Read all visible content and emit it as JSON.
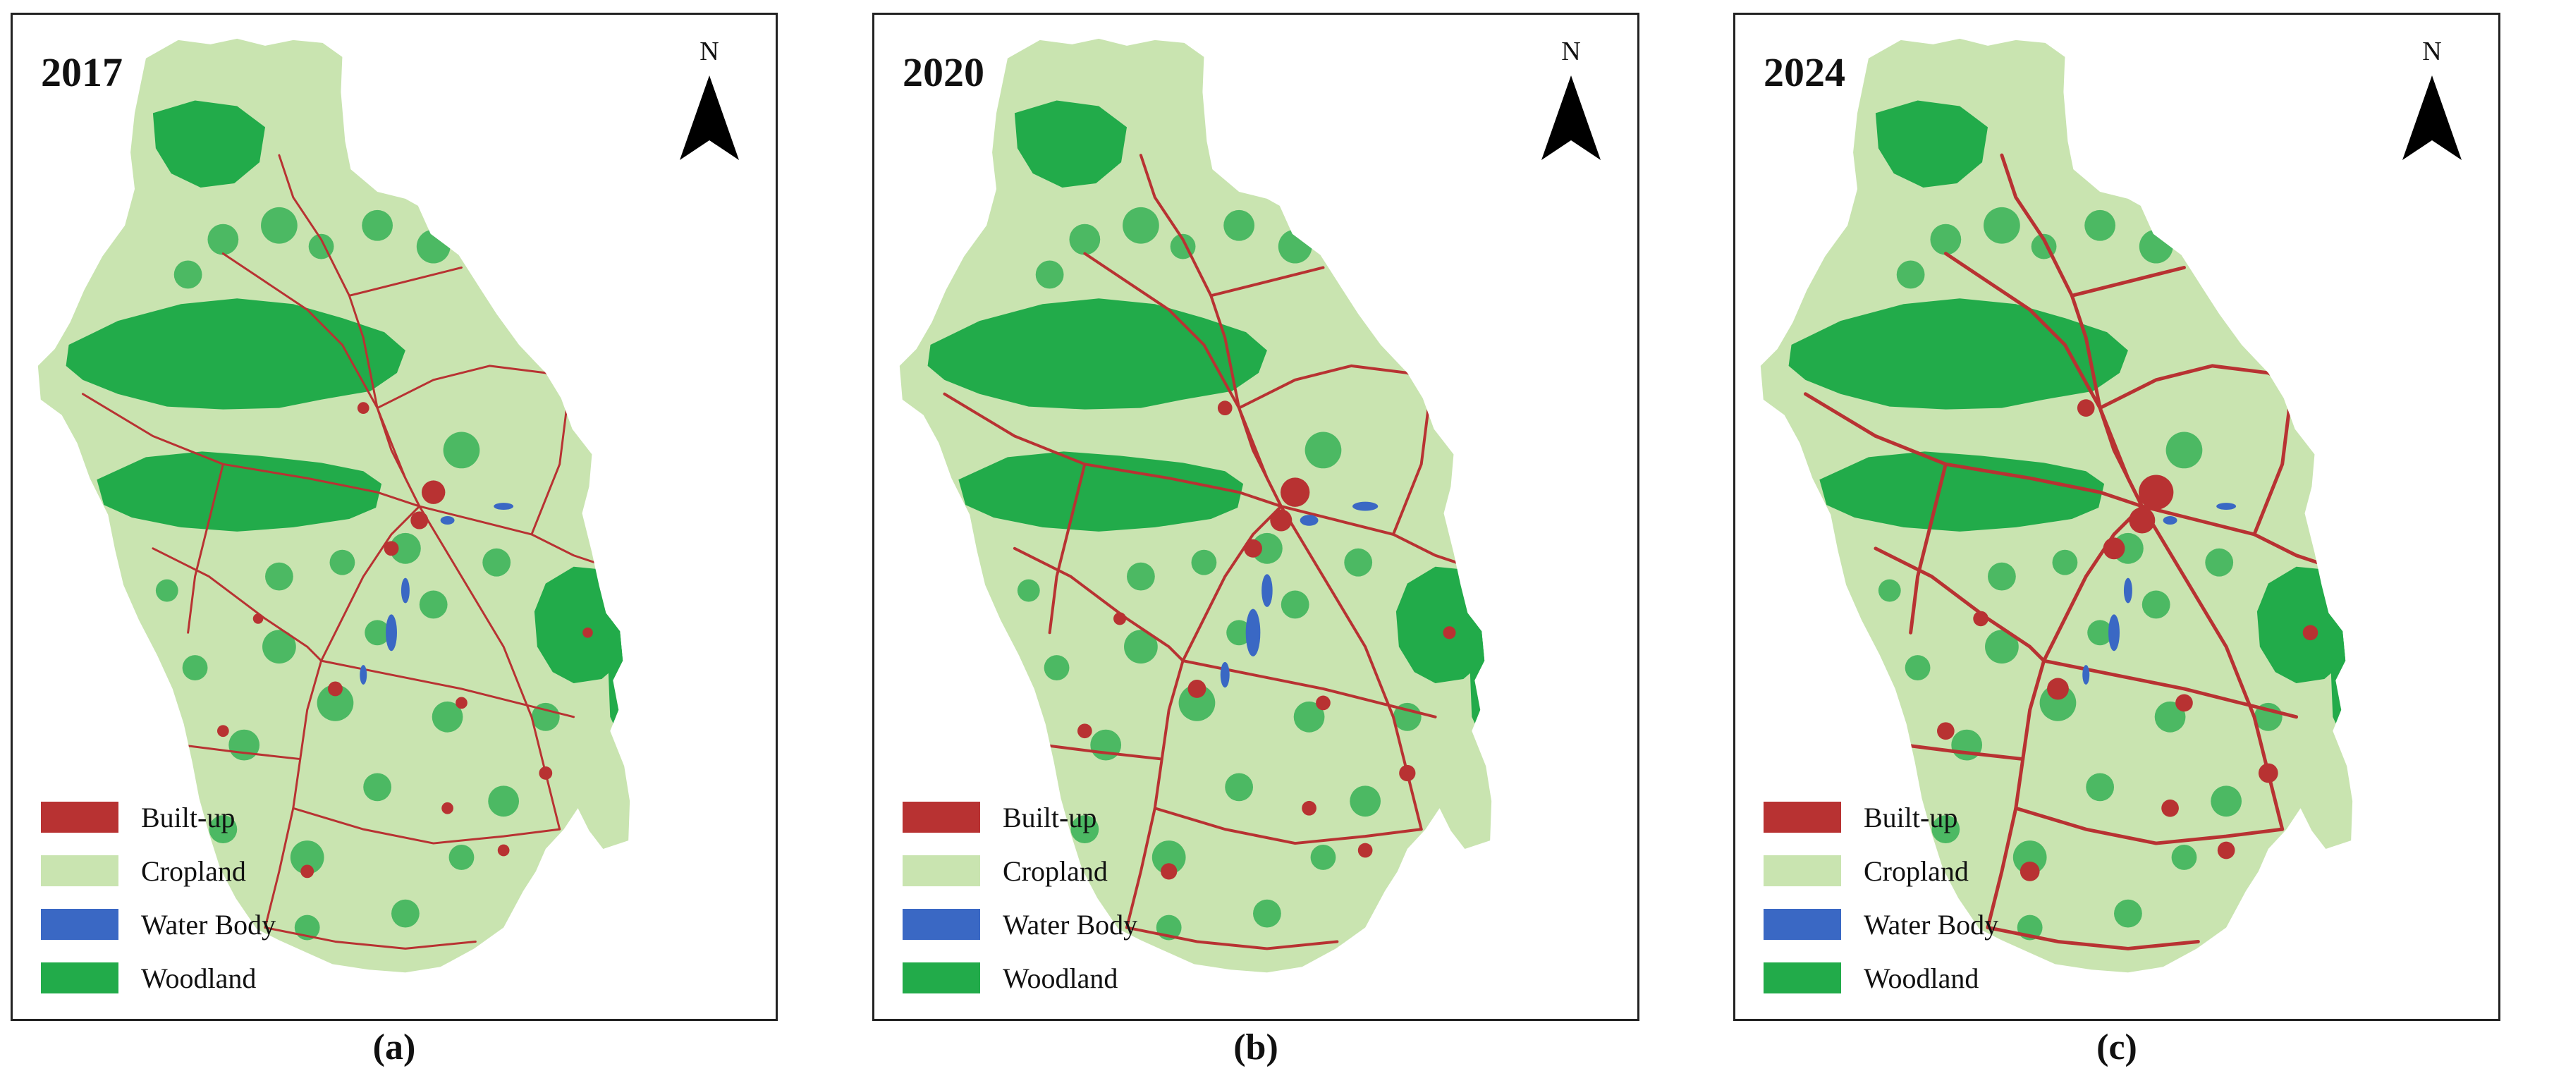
{
  "panels": [
    {
      "year": "2017",
      "caption": "(a)",
      "north": "N",
      "builtup_level": 1,
      "water_level": 1
    },
    {
      "year": "2020",
      "caption": "(b)",
      "north": "N",
      "builtup_level": 2,
      "water_level": 2
    },
    {
      "year": "2024",
      "caption": "(c)",
      "north": "N",
      "builtup_level": 3,
      "water_level": 1
    }
  ],
  "legend": [
    {
      "label": "Built-up",
      "color": "#b83232"
    },
    {
      "label": "Cropland",
      "color": "#c9e4b0"
    },
    {
      "label": "Water Body",
      "color": "#3a68c4"
    },
    {
      "label": "Woodland",
      "color": "#22ab4a"
    }
  ],
  "icons": {
    "north_arrow": "north-arrow-icon"
  }
}
